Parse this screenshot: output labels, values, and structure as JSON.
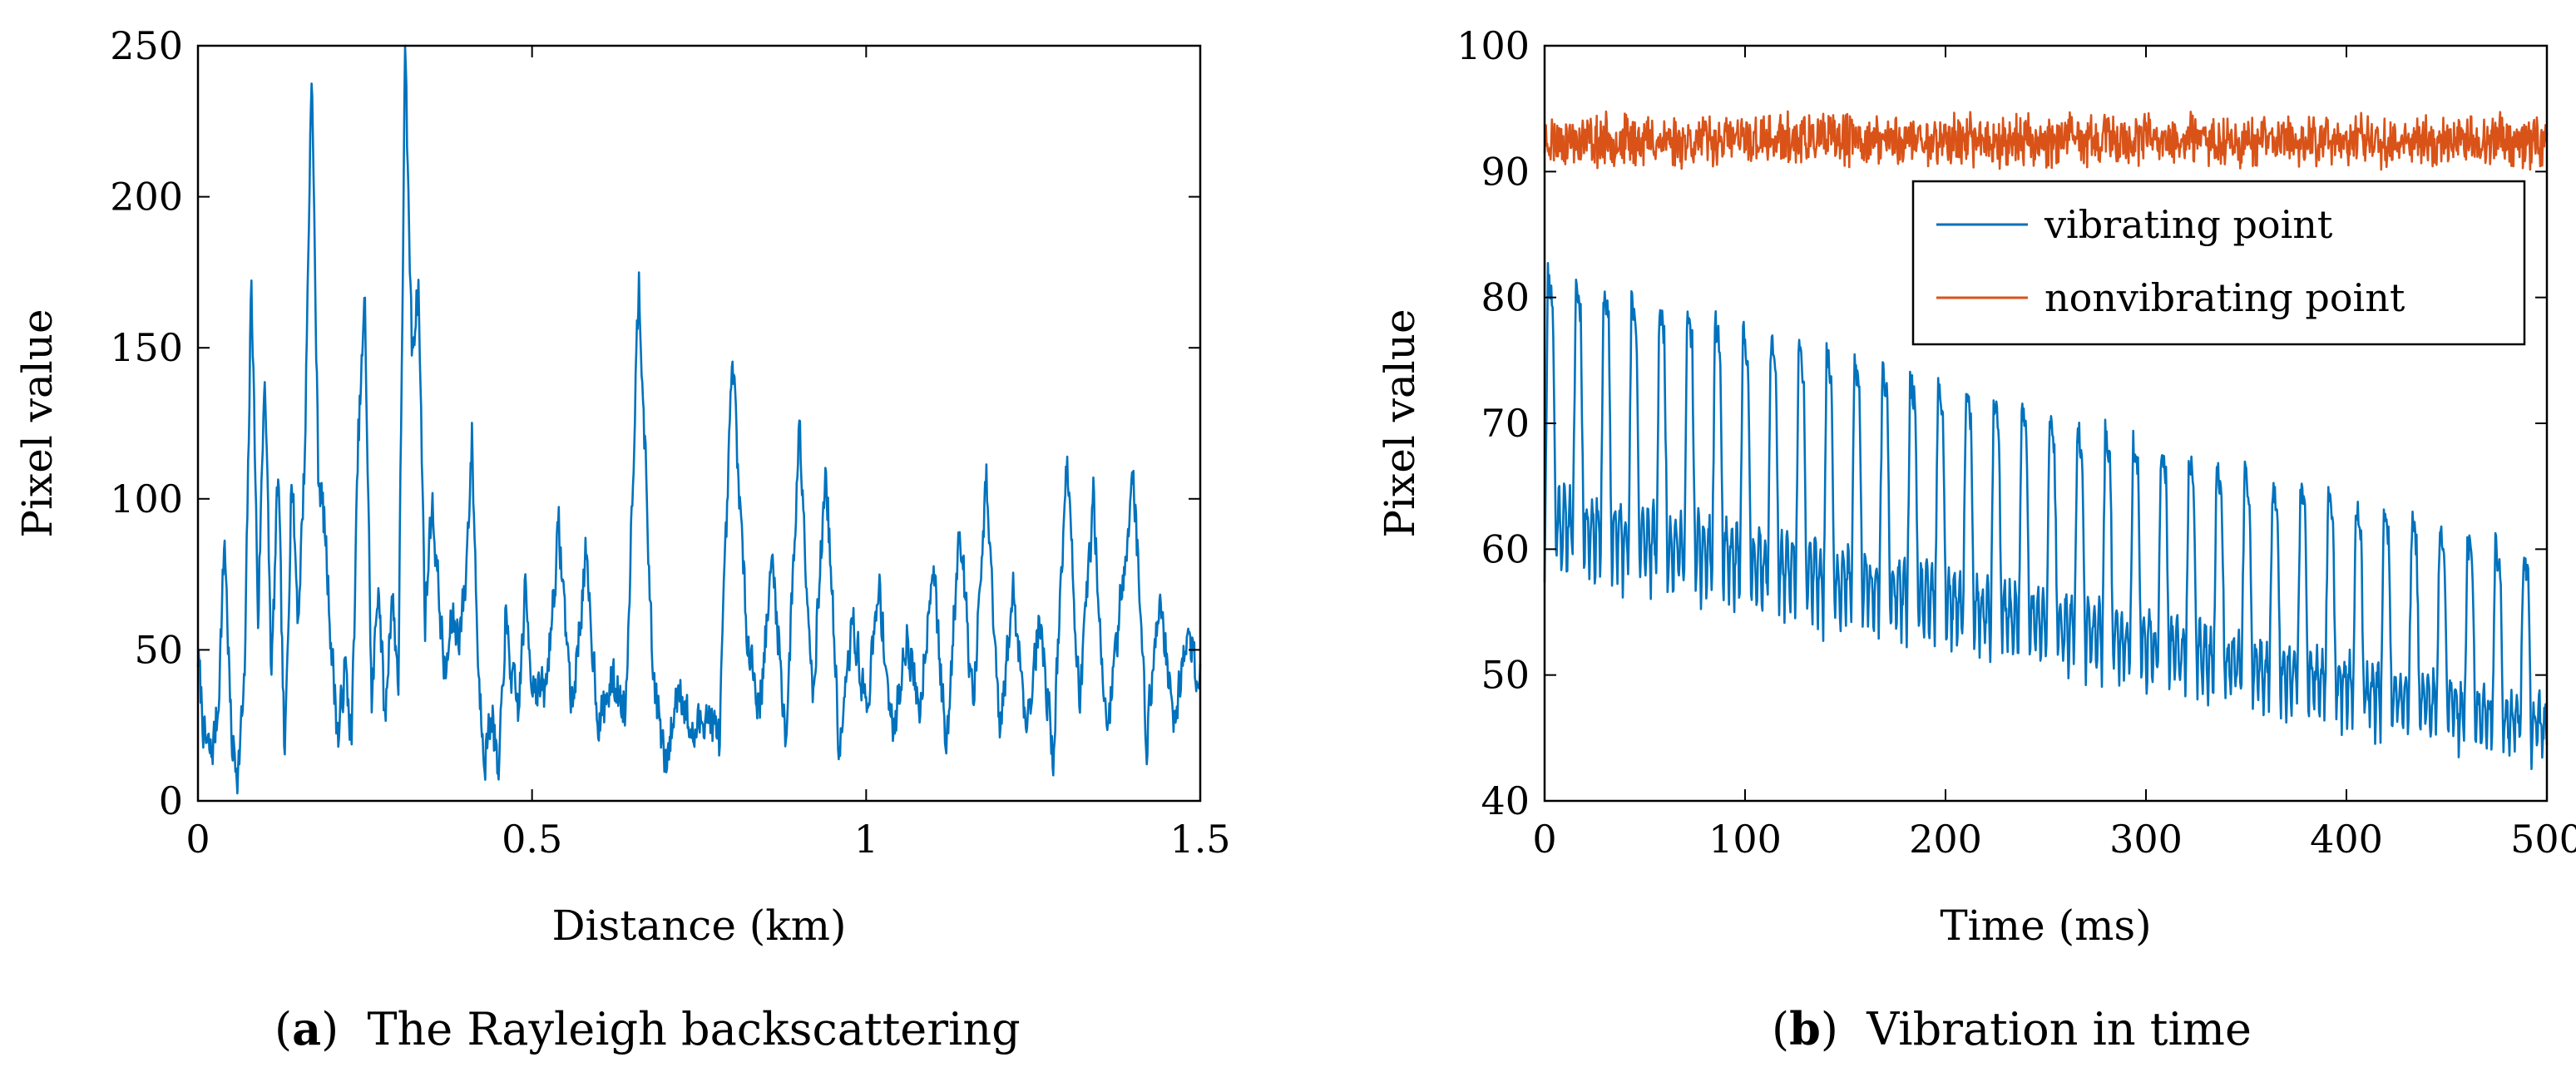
{
  "chart_data": [
    {
      "id": "a",
      "type": "line",
      "title": "",
      "xlabel": "Distance (km)",
      "ylabel": "Pixel value",
      "xlim": [
        0,
        1.5
      ],
      "ylim": [
        0,
        250
      ],
      "xticks": [
        0,
        0.5,
        1,
        1.5
      ],
      "xtick_labels": [
        "0",
        "0.5",
        "1",
        "1.5"
      ],
      "yticks": [
        0,
        50,
        100,
        150,
        200,
        250
      ],
      "ytick_labels": [
        "0",
        "50",
        "100",
        "150",
        "200",
        "250"
      ],
      "grid": false,
      "series": [
        {
          "name": "Rayleigh backscattering",
          "color": "#0072BD",
          "noise_seed": 7,
          "noise_amp": 10,
          "samples": 1500,
          "x": [
            0,
            0.01,
            0.02,
            0.03,
            0.04,
            0.05,
            0.06,
            0.07,
            0.08,
            0.09,
            0.1,
            0.11,
            0.12,
            0.13,
            0.14,
            0.15,
            0.16,
            0.17,
            0.18,
            0.19,
            0.2,
            0.21,
            0.22,
            0.23,
            0.24,
            0.25,
            0.26,
            0.27,
            0.28,
            0.29,
            0.3,
            0.31,
            0.32,
            0.33,
            0.34,
            0.35,
            0.36,
            0.37,
            0.38,
            0.39,
            0.4,
            0.41,
            0.42,
            0.43,
            0.44,
            0.45,
            0.46,
            0.47,
            0.48,
            0.49,
            0.5,
            0.52,
            0.54,
            0.56,
            0.58,
            0.6,
            0.62,
            0.64,
            0.66,
            0.68,
            0.7,
            0.72,
            0.74,
            0.76,
            0.78,
            0.8,
            0.82,
            0.84,
            0.86,
            0.88,
            0.9,
            0.92,
            0.94,
            0.96,
            0.98,
            1.0,
            1.02,
            1.04,
            1.06,
            1.08,
            1.1,
            1.12,
            1.14,
            1.16,
            1.18,
            1.2,
            1.22,
            1.24,
            1.26,
            1.28,
            1.3,
            1.32,
            1.34,
            1.36,
            1.38,
            1.4,
            1.42,
            1.44,
            1.46,
            1.48,
            1.5
          ],
          "y": [
            48,
            20,
            15,
            30,
            88,
            20,
            10,
            40,
            175,
            60,
            145,
            40,
            110,
            10,
            110,
            60,
            115,
            245,
            110,
            90,
            50,
            20,
            45,
            20,
            120,
            165,
            30,
            75,
            25,
            70,
            40,
            248,
            150,
            170,
            60,
            100,
            70,
            40,
            60,
            55,
            70,
            120,
            40,
            15,
            30,
            5,
            60,
            40,
            30,
            70,
            40,
            35,
            90,
            30,
            80,
            25,
            40,
            30,
            175,
            45,
            10,
            40,
            20,
            30,
            20,
            147,
            60,
            30,
            80,
            20,
            125,
            35,
            110,
            15,
            60,
            30,
            70,
            20,
            55,
            30,
            80,
            15,
            95,
            30,
            105,
            20,
            70,
            25,
            60,
            15,
            114,
            30,
            100,
            20,
            65,
            108,
            20,
            70,
            25,
            55,
            40
          ]
        }
      ]
    },
    {
      "id": "b",
      "type": "line",
      "title": "",
      "xlabel": "Time (ms)",
      "ylabel": "Pixel value",
      "xlim": [
        0,
        500
      ],
      "ylim": [
        40,
        100
      ],
      "xticks": [
        0,
        100,
        200,
        300,
        400,
        500
      ],
      "xtick_labels": [
        "0",
        "100",
        "200",
        "300",
        "400",
        "500"
      ],
      "yticks": [
        40,
        50,
        60,
        70,
        80,
        90,
        100
      ],
      "ytick_labels": [
        "40",
        "50",
        "60",
        "70",
        "80",
        "90",
        "100"
      ],
      "grid": false,
      "legend_position": "top-right",
      "series": [
        {
          "name": "vibrating point",
          "color": "#0072BD",
          "period_ms": 13.9,
          "peak_start": 82,
          "peak_end": 59,
          "trough_start": 58,
          "trough_end": 43,
          "noise_seed": 11,
          "noise_amp": 1.2,
          "samples": 1500
        },
        {
          "name": "nonvibrating point",
          "color": "#D95319",
          "mean": 92.5,
          "noise_seed": 23,
          "noise_amp": 1.6,
          "samples": 1500
        }
      ]
    }
  ],
  "captions": {
    "a": {
      "tag": "a",
      "text": "The Rayleigh backscattering"
    },
    "b": {
      "tag": "b",
      "text": "Vibration in time"
    }
  }
}
